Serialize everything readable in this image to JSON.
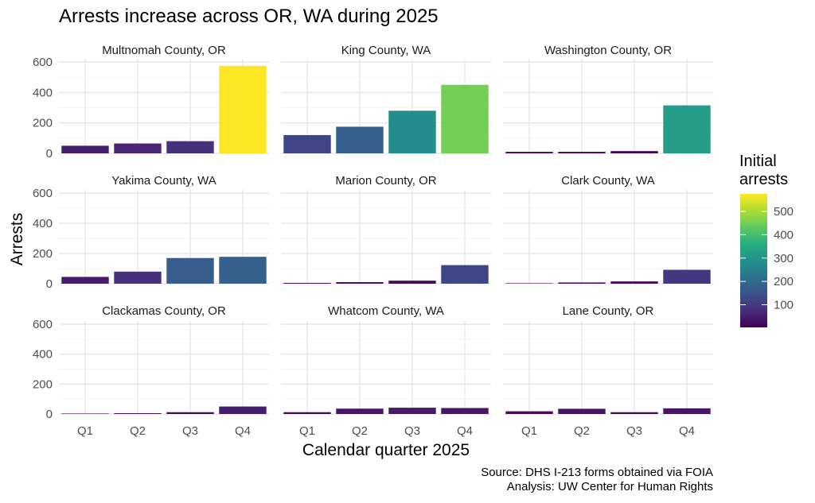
{
  "chart_data": {
    "type": "bar",
    "title": "Arrests increase across OR, WA during 2025",
    "xlabel": "Calendar quarter 2025",
    "ylabel": "Arrests",
    "ylim": [
      0,
      600
    ],
    "yticks": [
      "0",
      "200",
      "400",
      "600"
    ],
    "categories": [
      "Q1",
      "Q2",
      "Q3",
      "Q4"
    ],
    "facets": [
      {
        "name": "Multnomah County, OR",
        "values": [
          50,
          65,
          80,
          575
        ]
      },
      {
        "name": "King County, WA",
        "values": [
          120,
          175,
          280,
          450
        ]
      },
      {
        "name": "Washington County, OR",
        "values": [
          10,
          10,
          15,
          315
        ]
      },
      {
        "name": "Yakima County, WA",
        "values": [
          45,
          80,
          170,
          178
        ]
      },
      {
        "name": "Marion County, OR",
        "values": [
          5,
          10,
          20,
          123
        ]
      },
      {
        "name": "Clark County, WA",
        "values": [
          3,
          8,
          15,
          92
        ]
      },
      {
        "name": "Clackamas County, OR",
        "values": [
          3,
          5,
          12,
          50
        ]
      },
      {
        "name": "Whatcom County, WA",
        "values": [
          12,
          36,
          42,
          40
        ]
      },
      {
        "name": "Lane County, OR",
        "values": [
          18,
          35,
          12,
          38
        ]
      }
    ],
    "legend": {
      "title_line1": "Initial",
      "title_line2": "arrests",
      "ticks": [
        "100",
        "200",
        "300",
        "400",
        "500"
      ],
      "tick_values": [
        100,
        200,
        300,
        400,
        500
      ],
      "range": [
        3,
        575
      ],
      "position": "right"
    },
    "colormap": [
      "#440154",
      "#472d7b",
      "#3b528b",
      "#2c728e",
      "#21918c",
      "#28ae80",
      "#5ec962",
      "#addc30",
      "#fde725"
    ],
    "caption_line1": "Source: DHS I-213 forms obtained via FOIA",
    "caption_line2": "Analysis: UW Center for Human Rights"
  }
}
